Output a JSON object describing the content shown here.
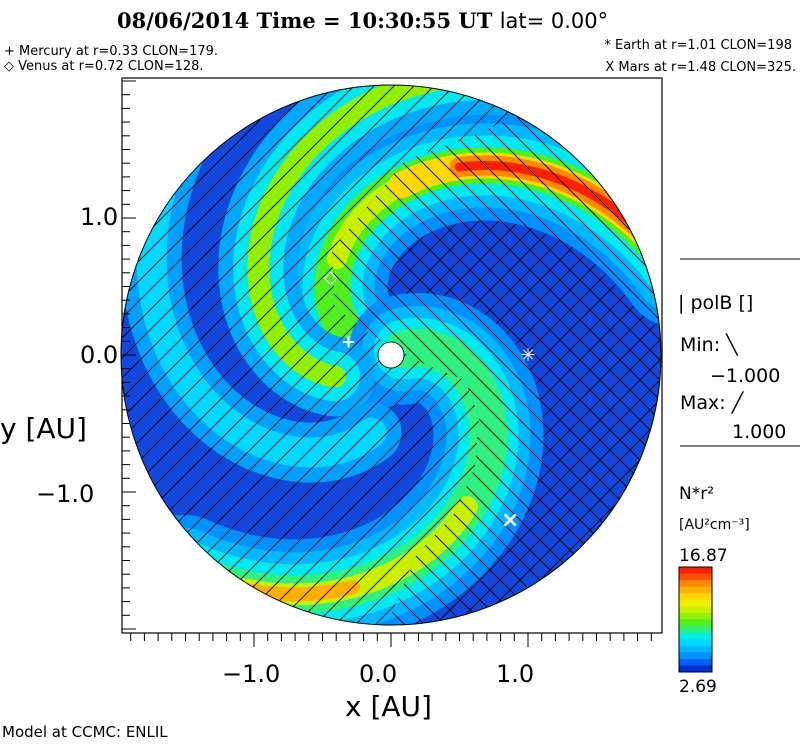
{
  "header": {
    "title": "08/06/2014 Time = 10:30:55 UT",
    "lat": "lat= 0.00°"
  },
  "planets": [
    {
      "label": "+ Mercury at r=0.33 CLON=179.",
      "symbol": "+",
      "x": -0.31,
      "y": 0.1
    },
    {
      "label": "◇ Venus at r=0.72 CLON=128.",
      "symbol": "◇",
      "x": -0.44,
      "y": 0.57
    },
    {
      "label": "* Earth at  r=1.01 CLON=198",
      "symbol": "✳",
      "x": 1.0,
      "y": 0.0
    },
    {
      "label": "X Mars at r=1.48 CLON=325.",
      "symbol": "×",
      "x": 0.87,
      "y": -1.21
    }
  ],
  "legend": {
    "polarity_label": "| polB []",
    "min_label": "Min: ╲",
    "min_value": "−1.000",
    "max_label": "Max: ╱",
    "max_value": "1.000",
    "quantity": "N*r²",
    "units": "[AU²cm⁻³]",
    "colorbar_max": "16.87",
    "colorbar_min": "2.69"
  },
  "footer": "Model at CCMC: ENLIL",
  "chart_data": {
    "type": "heatmap",
    "title": "08/06/2014 Time = 10:30:55 UT lat= 0.00°",
    "xlabel": "x [AU]",
    "ylabel": "y [AU]",
    "xlim": [
      -1.97,
      1.97
    ],
    "ylim": [
      -2.0,
      2.0
    ],
    "xticks": [
      "−1.0",
      "0.0",
      "1.0"
    ],
    "yticks": [
      "1.0",
      "0.0",
      "−1.0"
    ],
    "xtick_values": [
      -1,
      0,
      1
    ],
    "ytick_values": [
      1,
      0,
      -1
    ],
    "colorbar_range": [
      2.69,
      16.87
    ],
    "colors": [
      "#ff2000",
      "#ff5000",
      "#ff8a00",
      "#ffb000",
      "#ffd800",
      "#f0f000",
      "#c8f000",
      "#90f000",
      "#50f020",
      "#30f080",
      "#00f0e0",
      "#00d8ff",
      "#00b8ff",
      "#0090ff",
      "#0060f0",
      "#0030d8"
    ]
  }
}
